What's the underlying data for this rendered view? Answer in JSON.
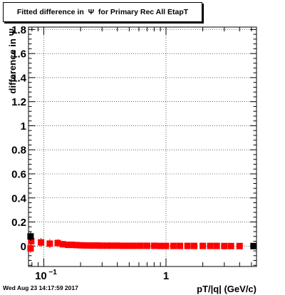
{
  "chart_data": {
    "type": "scatter",
    "title": "Fitted difference in  Ψ  for Primary Rec All EtapT",
    "xlabel": "pT/|q| (GeV/c)",
    "ylabel": "difference in  Ψ",
    "xscale": "log",
    "xlim": [
      0.075,
      5.5
    ],
    "ylim": [
      -0.17,
      1.82
    ],
    "grid": true,
    "y_ticks": [
      0,
      0.2,
      0.4,
      0.6,
      0.8,
      1,
      1.2,
      1.4,
      1.6,
      1.8
    ],
    "y_tick_labels": [
      "0",
      "0.2",
      "0.4",
      "0.6",
      "0.8",
      "1",
      "1.2",
      "1.4",
      "1.6",
      "1.8"
    ],
    "x_major_ticks": [
      0.1,
      1
    ],
    "x_tick_labels": [
      "10",
      "1"
    ],
    "x_tick_label_exponent": "−1",
    "series": [
      {
        "color": "#ff0000",
        "marker": "square",
        "points": [
          {
            "x": 0.078,
            "y": -0.02,
            "err": 0.02
          },
          {
            "x": 0.079,
            "y": 0.04,
            "err": 0.02
          },
          {
            "x": 0.095,
            "y": 0.03,
            "err": 0.02
          },
          {
            "x": 0.112,
            "y": 0.02,
            "err": 0.02
          },
          {
            "x": 0.13,
            "y": 0.025,
            "err": 0.015
          },
          {
            "x": 0.143,
            "y": 0.015,
            "err": 0.01
          },
          {
            "x": 0.158,
            "y": 0.01,
            "err": 0.01
          },
          {
            "x": 0.17,
            "y": 0.01,
            "err": 0.01
          },
          {
            "x": 0.185,
            "y": 0.008,
            "err": 0.008
          },
          {
            "x": 0.2,
            "y": 0.006,
            "err": 0.006
          },
          {
            "x": 0.22,
            "y": 0.005,
            "err": 0.005
          },
          {
            "x": 0.24,
            "y": 0.004,
            "err": 0.005
          },
          {
            "x": 0.26,
            "y": 0.004,
            "err": 0.004
          },
          {
            "x": 0.28,
            "y": 0.004,
            "err": 0.004
          },
          {
            "x": 0.3,
            "y": 0.003,
            "err": 0.004
          },
          {
            "x": 0.33,
            "y": 0.003,
            "err": 0.004
          },
          {
            "x": 0.36,
            "y": 0.003,
            "err": 0.003
          },
          {
            "x": 0.4,
            "y": 0.003,
            "err": 0.003
          },
          {
            "x": 0.45,
            "y": 0.002,
            "err": 0.003
          },
          {
            "x": 0.5,
            "y": 0.002,
            "err": 0.003
          },
          {
            "x": 0.55,
            "y": 0.002,
            "err": 0.003
          },
          {
            "x": 0.62,
            "y": 0.002,
            "err": 0.003
          },
          {
            "x": 0.7,
            "y": 0.002,
            "err": 0.003
          },
          {
            "x": 0.8,
            "y": 0.002,
            "err": 0.003
          },
          {
            "x": 0.9,
            "y": 0.001,
            "err": 0.003
          },
          {
            "x": 1.0,
            "y": 0.001,
            "err": 0.003
          },
          {
            "x": 1.15,
            "y": 0.001,
            "err": 0.003
          },
          {
            "x": 1.3,
            "y": 0.001,
            "err": 0.003
          },
          {
            "x": 1.5,
            "y": 0.001,
            "err": 0.003
          },
          {
            "x": 1.7,
            "y": 0.001,
            "err": 0.003
          },
          {
            "x": 2.0,
            "y": 0.001,
            "err": 0.003
          },
          {
            "x": 2.3,
            "y": 0.001,
            "err": 0.003
          },
          {
            "x": 2.6,
            "y": 0.001,
            "err": 0.003
          },
          {
            "x": 3.0,
            "y": 0.0,
            "err": 0.003
          },
          {
            "x": 3.4,
            "y": 0.0,
            "err": 0.003
          },
          {
            "x": 4.0,
            "y": 0.0,
            "err": 0.004
          }
        ]
      },
      {
        "color": "#000000",
        "marker": "square",
        "points": [
          {
            "x": 0.078,
            "y": 0.08,
            "err": 0.02
          },
          {
            "x": 5.2,
            "y": 0.0,
            "err": 0.003
          }
        ]
      }
    ]
  },
  "footer": {
    "timestamp": "Wed Aug 23 14:17:59 2017"
  }
}
